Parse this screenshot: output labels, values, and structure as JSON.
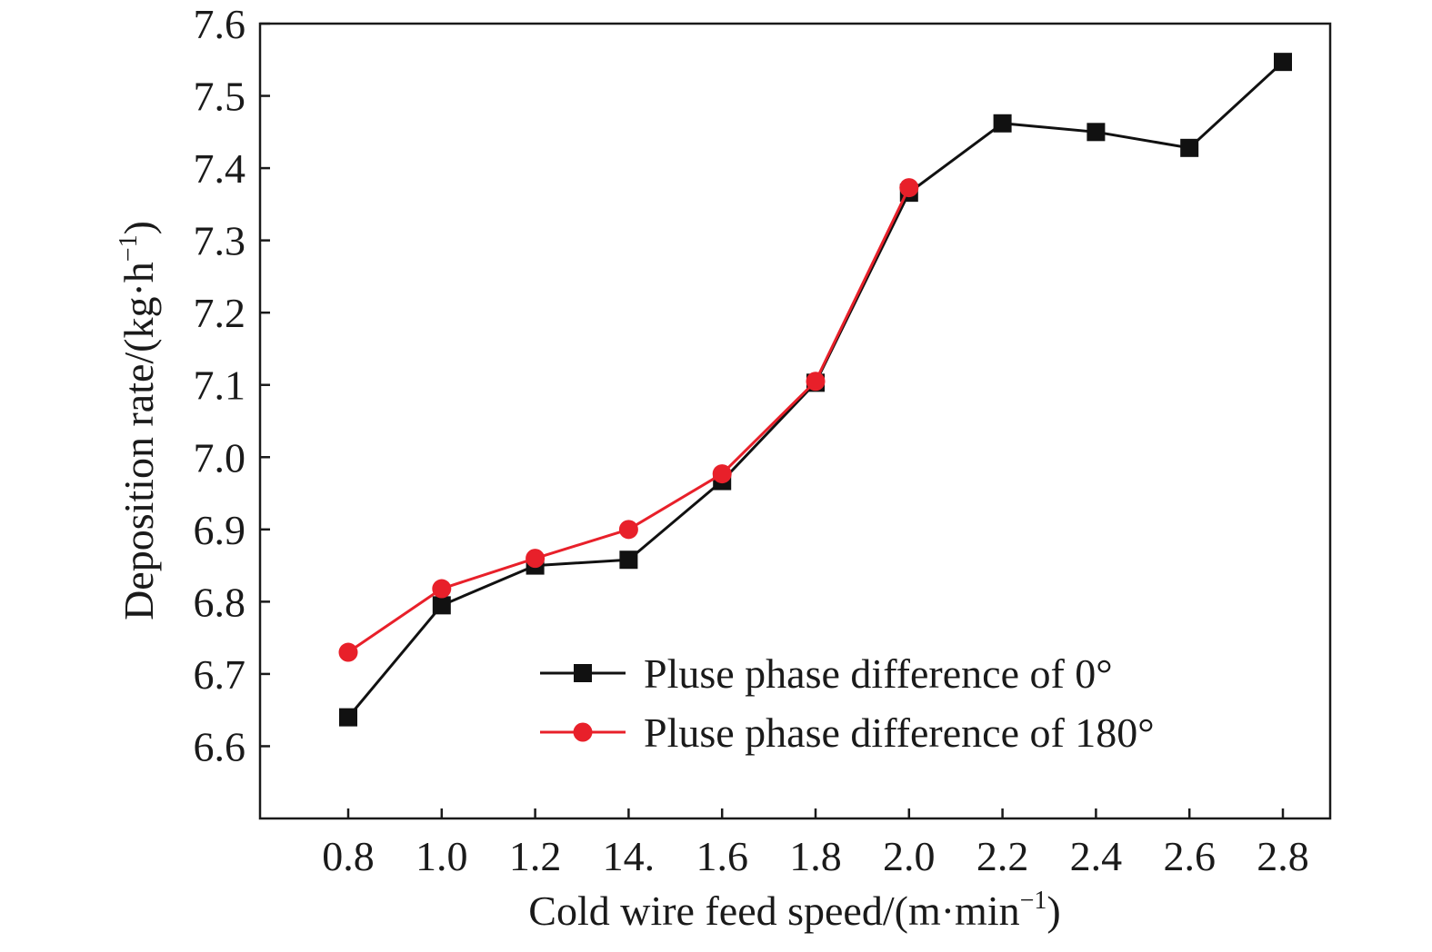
{
  "chart_data": {
    "type": "line",
    "title": "",
    "xlabel": "Cold wire feed speed/(m·min",
    "xlabel_sup": "−1",
    "xlabel_close": ")",
    "ylabel": "Deposition rate/(kg·h",
    "ylabel_sup": "−1",
    "ylabel_close": ")",
    "categories": [
      "0.8",
      "1.0",
      "1.2",
      "14.",
      "1.6",
      "1.8",
      "2.0",
      "2.2",
      "2.4",
      "2.6",
      "2.8"
    ],
    "ylim": [
      6.5,
      7.6
    ],
    "yticks": [
      "6.6",
      "6.7",
      "6.8",
      "6.9",
      "7.0",
      "7.1",
      "7.2",
      "7.3",
      "7.4",
      "7.5",
      "7.6"
    ],
    "ytick_values": [
      6.6,
      6.7,
      6.8,
      6.9,
      7.0,
      7.1,
      7.2,
      7.3,
      7.4,
      7.5,
      7.6
    ],
    "grid": false,
    "legend_position": "bottom-right",
    "series": [
      {
        "name": "Pluse phase difference of 0°",
        "color": "#111111",
        "marker": "square",
        "values": [
          6.64,
          6.795,
          6.85,
          6.858,
          6.967,
          7.103,
          7.366,
          7.462,
          7.45,
          7.428,
          7.547
        ]
      },
      {
        "name": "Pluse phase difference of 180°",
        "color": "#e8202a",
        "marker": "circle",
        "values": [
          6.73,
          6.818,
          6.86,
          6.9,
          6.977,
          7.105,
          7.373,
          null,
          null,
          null,
          null
        ]
      }
    ]
  }
}
